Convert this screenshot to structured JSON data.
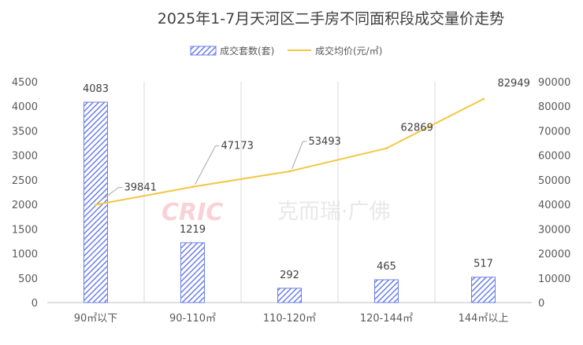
{
  "chart_data": {
    "type": "bar+line",
    "title": "2025年1-7月天河区二手房不同面积段成交量价走势",
    "categories": [
      "90㎡以下",
      "90-110㎡",
      "110-120㎡",
      "120-144㎡",
      "144㎡以上"
    ],
    "series": [
      {
        "name": "成交套数(套)",
        "type": "bar",
        "axis": "left",
        "values": [
          4083,
          1219,
          292,
          465,
          517
        ],
        "color": "#6b7fe8"
      },
      {
        "name": "成交均价(元/㎡)",
        "type": "line",
        "axis": "right",
        "values": [
          39841,
          47173,
          53493,
          62869,
          82949
        ],
        "color": "#f2c744"
      }
    ],
    "y_left": {
      "min": 0,
      "max": 4500,
      "step": 500,
      "ticks": [
        "0",
        "500",
        "1000",
        "1500",
        "2000",
        "2500",
        "3000",
        "3500",
        "4000",
        "4500"
      ]
    },
    "y_right": {
      "min": 0,
      "max": 90000,
      "step": 10000,
      "ticks": [
        "0",
        "10000",
        "20000",
        "30000",
        "40000",
        "50000",
        "60000",
        "70000",
        "80000",
        "90000"
      ]
    },
    "grid": "vertical-category-separators",
    "legend_position": "top-center"
  },
  "watermark": {
    "logo_text": "CRIC",
    "cn_text": "克而瑞·广佛"
  }
}
